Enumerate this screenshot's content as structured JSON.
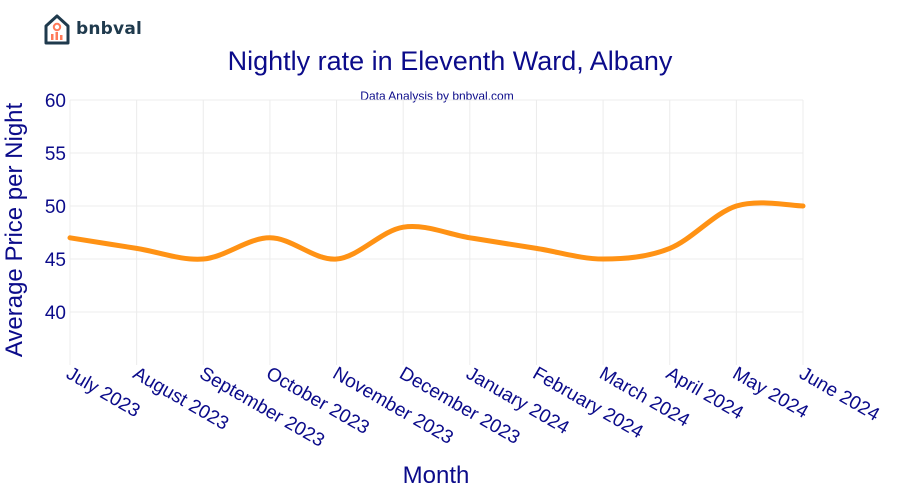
{
  "brand": {
    "name": "bnbval"
  },
  "chart_data": {
    "type": "line",
    "title": "Nightly rate in Eleventh Ward, Albany",
    "subtitle": "Data Analysis by bnbval.com",
    "xlabel": "Month",
    "ylabel": "Average Price per Night",
    "categories": [
      "July 2023",
      "August 2023",
      "September 2023",
      "October 2023",
      "November 2023",
      "December 2023",
      "January 2024",
      "February 2024",
      "March 2024",
      "April 2024",
      "May 2024",
      "June 2024"
    ],
    "series": [
      {
        "values": [
          47,
          46,
          45,
          47,
          45,
          48,
          47,
          46,
          45,
          46,
          50,
          50
        ]
      }
    ],
    "yticks": [
      40,
      45,
      50,
      55,
      60
    ],
    "ylim": [
      35,
      60
    ],
    "grid": true,
    "line_color": "#ff9214"
  }
}
